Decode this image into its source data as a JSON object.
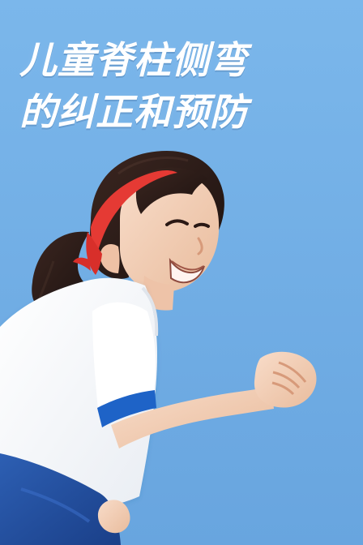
{
  "poster": {
    "title_lines": [
      "儿童脊柱侧弯",
      "的纠正和预防"
    ],
    "colors": {
      "sky": "#6ea9e2",
      "title_text": "#ffffff",
      "headband": "#e53a34",
      "shirt_white": "#f8f9fb",
      "sleeve_blue": "#1e63c7",
      "shorts_blue": "#1f4b9d",
      "skin": "#f5d2bc",
      "hair": "#2b1b17"
    },
    "icons": {
      "title": "title-text",
      "illustration": "running-child-illustration"
    }
  }
}
